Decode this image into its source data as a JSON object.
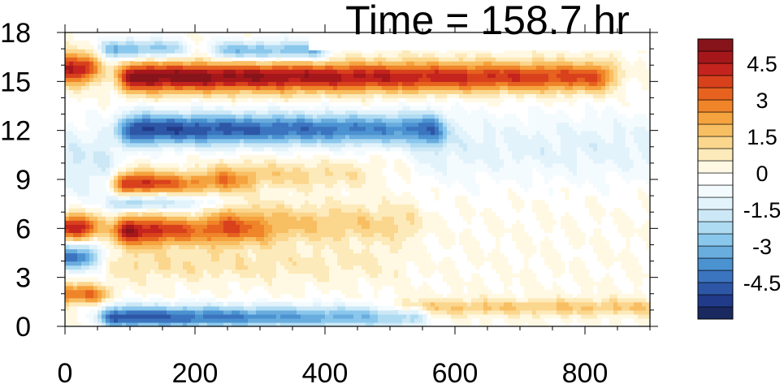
{
  "chart_data": {
    "type": "heatmap",
    "title": "Time = 158.7 hr",
    "xlabel": "",
    "ylabel": "",
    "xlim": [
      0,
      900
    ],
    "ylim": [
      0,
      18
    ],
    "x_ticks": [
      "0",
      "200",
      "400",
      "600",
      "800"
    ],
    "x_tick_values": [
      0,
      200,
      400,
      600,
      800
    ],
    "y_ticks": [
      "0",
      "3",
      "6",
      "9",
      "12",
      "15",
      "18"
    ],
    "y_tick_values": [
      0,
      3,
      6,
      9,
      12,
      15,
      18
    ],
    "colorbar": {
      "levels": [
        -5.5,
        -5,
        -4.5,
        -4,
        -3.5,
        -3,
        -2.5,
        -2,
        -1.5,
        -1,
        -0.5,
        0,
        0.5,
        1,
        1.5,
        2,
        2.5,
        3,
        3.5,
        4,
        4.5,
        5,
        5.5
      ],
      "colors": [
        "#1a2a60",
        "#213b8a",
        "#2d57a6",
        "#3b74bf",
        "#4b92d1",
        "#69acde",
        "#8ac7ec",
        "#aedbf2",
        "#cce8f6",
        "#e3f3fb",
        "#f4fbfe",
        "#ffffff",
        "#fff9e4",
        "#fdeaba",
        "#fbd68d",
        "#f8be62",
        "#f5a33e",
        "#ef8429",
        "#e6621e",
        "#d9411d",
        "#c4241d",
        "#a5171a",
        "#87141a"
      ],
      "tick_labels": [
        "4.5",
        "3",
        "1.5",
        "0",
        "-1.5",
        "-3",
        "-4.5"
      ],
      "tick_values": [
        4.5,
        3,
        1.5,
        0,
        -1.5,
        -3,
        -4.5
      ]
    },
    "features": [
      {
        "x0": 110,
        "x1": 820,
        "y": 15.3,
        "amp": 5.5,
        "halfwidth": 0.9,
        "decay": 0.35
      },
      {
        "x0": 110,
        "x1": 560,
        "y": 12.1,
        "amp": -5.2,
        "halfwidth": 1.0,
        "decay": 0.3
      },
      {
        "x0": 560,
        "x1": 900,
        "y": 11.0,
        "amp": -1.2,
        "halfwidth": 2.2,
        "decay": 0.0
      },
      {
        "x0": 100,
        "x1": 260,
        "y": 8.8,
        "amp": 4.5,
        "halfwidth": 0.7,
        "decay": 0.7
      },
      {
        "x0": 250,
        "x1": 450,
        "y": 9.3,
        "amp": 1.6,
        "halfwidth": 0.8,
        "decay": 0.5
      },
      {
        "x0": 100,
        "x1": 220,
        "y": 7.6,
        "amp": -2.6,
        "halfwidth": 0.5,
        "decay": 0.6
      },
      {
        "x0": 100,
        "x1": 300,
        "y": 5.9,
        "amp": 5.0,
        "halfwidth": 0.9,
        "decay": 0.8
      },
      {
        "x0": 250,
        "x1": 520,
        "y": 6.3,
        "amp": 1.9,
        "halfwidth": 1.2,
        "decay": 0.4
      },
      {
        "x0": 100,
        "x1": 500,
        "y": 3.8,
        "amp": 1.0,
        "halfwidth": 1.0,
        "decay": 0.5
      },
      {
        "x0": 80,
        "x1": 530,
        "y": 0.6,
        "amp": -5.0,
        "halfwidth": 0.7,
        "decay": 0.5
      },
      {
        "x0": 520,
        "x1": 900,
        "y": 1.2,
        "amp": 1.5,
        "halfwidth": 0.5,
        "decay": 0.0
      },
      {
        "x0": 80,
        "x1": 160,
        "y": 17.0,
        "amp": -3.2,
        "halfwidth": 0.6,
        "decay": 0.2
      },
      {
        "x0": 250,
        "x1": 380,
        "y": 16.9,
        "amp": -3.0,
        "halfwidth": 0.6,
        "decay": 0.0
      },
      {
        "x0": 0,
        "x1": 25,
        "y": 15.8,
        "amp": 4.6,
        "halfwidth": 0.9,
        "decay": 0.0
      },
      {
        "x0": 0,
        "x1": 25,
        "y": 6.1,
        "amp": 4.6,
        "halfwidth": 0.8,
        "decay": 0.0
      },
      {
        "x0": 0,
        "x1": 25,
        "y": 4.3,
        "amp": -4.0,
        "halfwidth": 0.8,
        "decay": 0.0
      },
      {
        "x0": 0,
        "x1": 40,
        "y": 2.0,
        "amp": 3.0,
        "halfwidth": 0.6,
        "decay": 0.0
      },
      {
        "x0": 0,
        "x1": 60,
        "y": 10.0,
        "amp": -1.5,
        "halfwidth": 2.5,
        "decay": 0.0
      }
    ]
  }
}
